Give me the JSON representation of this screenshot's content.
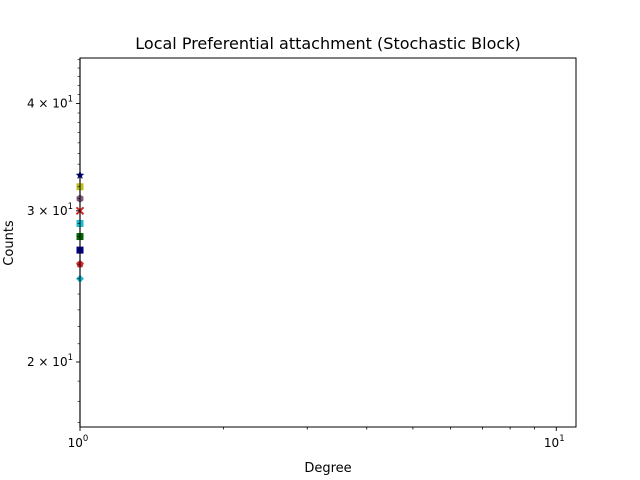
{
  "chart_data": {
    "type": "scatter",
    "title": "Local Preferential attachment (Stochastic Block)",
    "xlabel": "Degree",
    "ylabel": "Counts",
    "xscale": "log",
    "yscale": "log",
    "xlim": [
      1,
      11
    ],
    "ylim": [
      16.8,
      45.2
    ],
    "grid": false,
    "x_ticks": [
      {
        "value": 1,
        "base": "10",
        "exp": "0"
      },
      {
        "value": 10,
        "base": "10",
        "exp": "1"
      }
    ],
    "y_ticks": [
      {
        "value": 20,
        "mant": "2",
        "base": "10",
        "exp": "1"
      },
      {
        "value": 30,
        "mant": "3",
        "base": "10",
        "exp": "1"
      },
      {
        "value": 40,
        "mant": "4",
        "base": "10",
        "exp": "1"
      }
    ],
    "series": [
      {
        "marker": "star",
        "color": "#00008b",
        "points": [
          [
            1,
            33
          ]
        ]
      },
      {
        "marker": "square",
        "color": "#bcbd22",
        "points": [
          [
            1,
            32
          ]
        ]
      },
      {
        "marker": "hexagon",
        "color": "#7f5f7f",
        "points": [
          [
            1,
            31
          ]
        ]
      },
      {
        "marker": "x",
        "color": "#d62728",
        "points": [
          [
            1,
            30
          ]
        ]
      },
      {
        "marker": "square",
        "color": "#17becf",
        "points": [
          [
            1,
            29
          ]
        ]
      },
      {
        "marker": "square",
        "color": "#006400",
        "points": [
          [
            1,
            28
          ]
        ]
      },
      {
        "marker": "square",
        "color": "#00008b",
        "points": [
          [
            1,
            27
          ]
        ]
      },
      {
        "marker": "pentagon",
        "color": "#d62728",
        "points": [
          [
            1,
            26
          ]
        ]
      },
      {
        "marker": "diamond",
        "color": "#17becf",
        "points": [
          [
            1,
            25
          ]
        ]
      }
    ]
  }
}
